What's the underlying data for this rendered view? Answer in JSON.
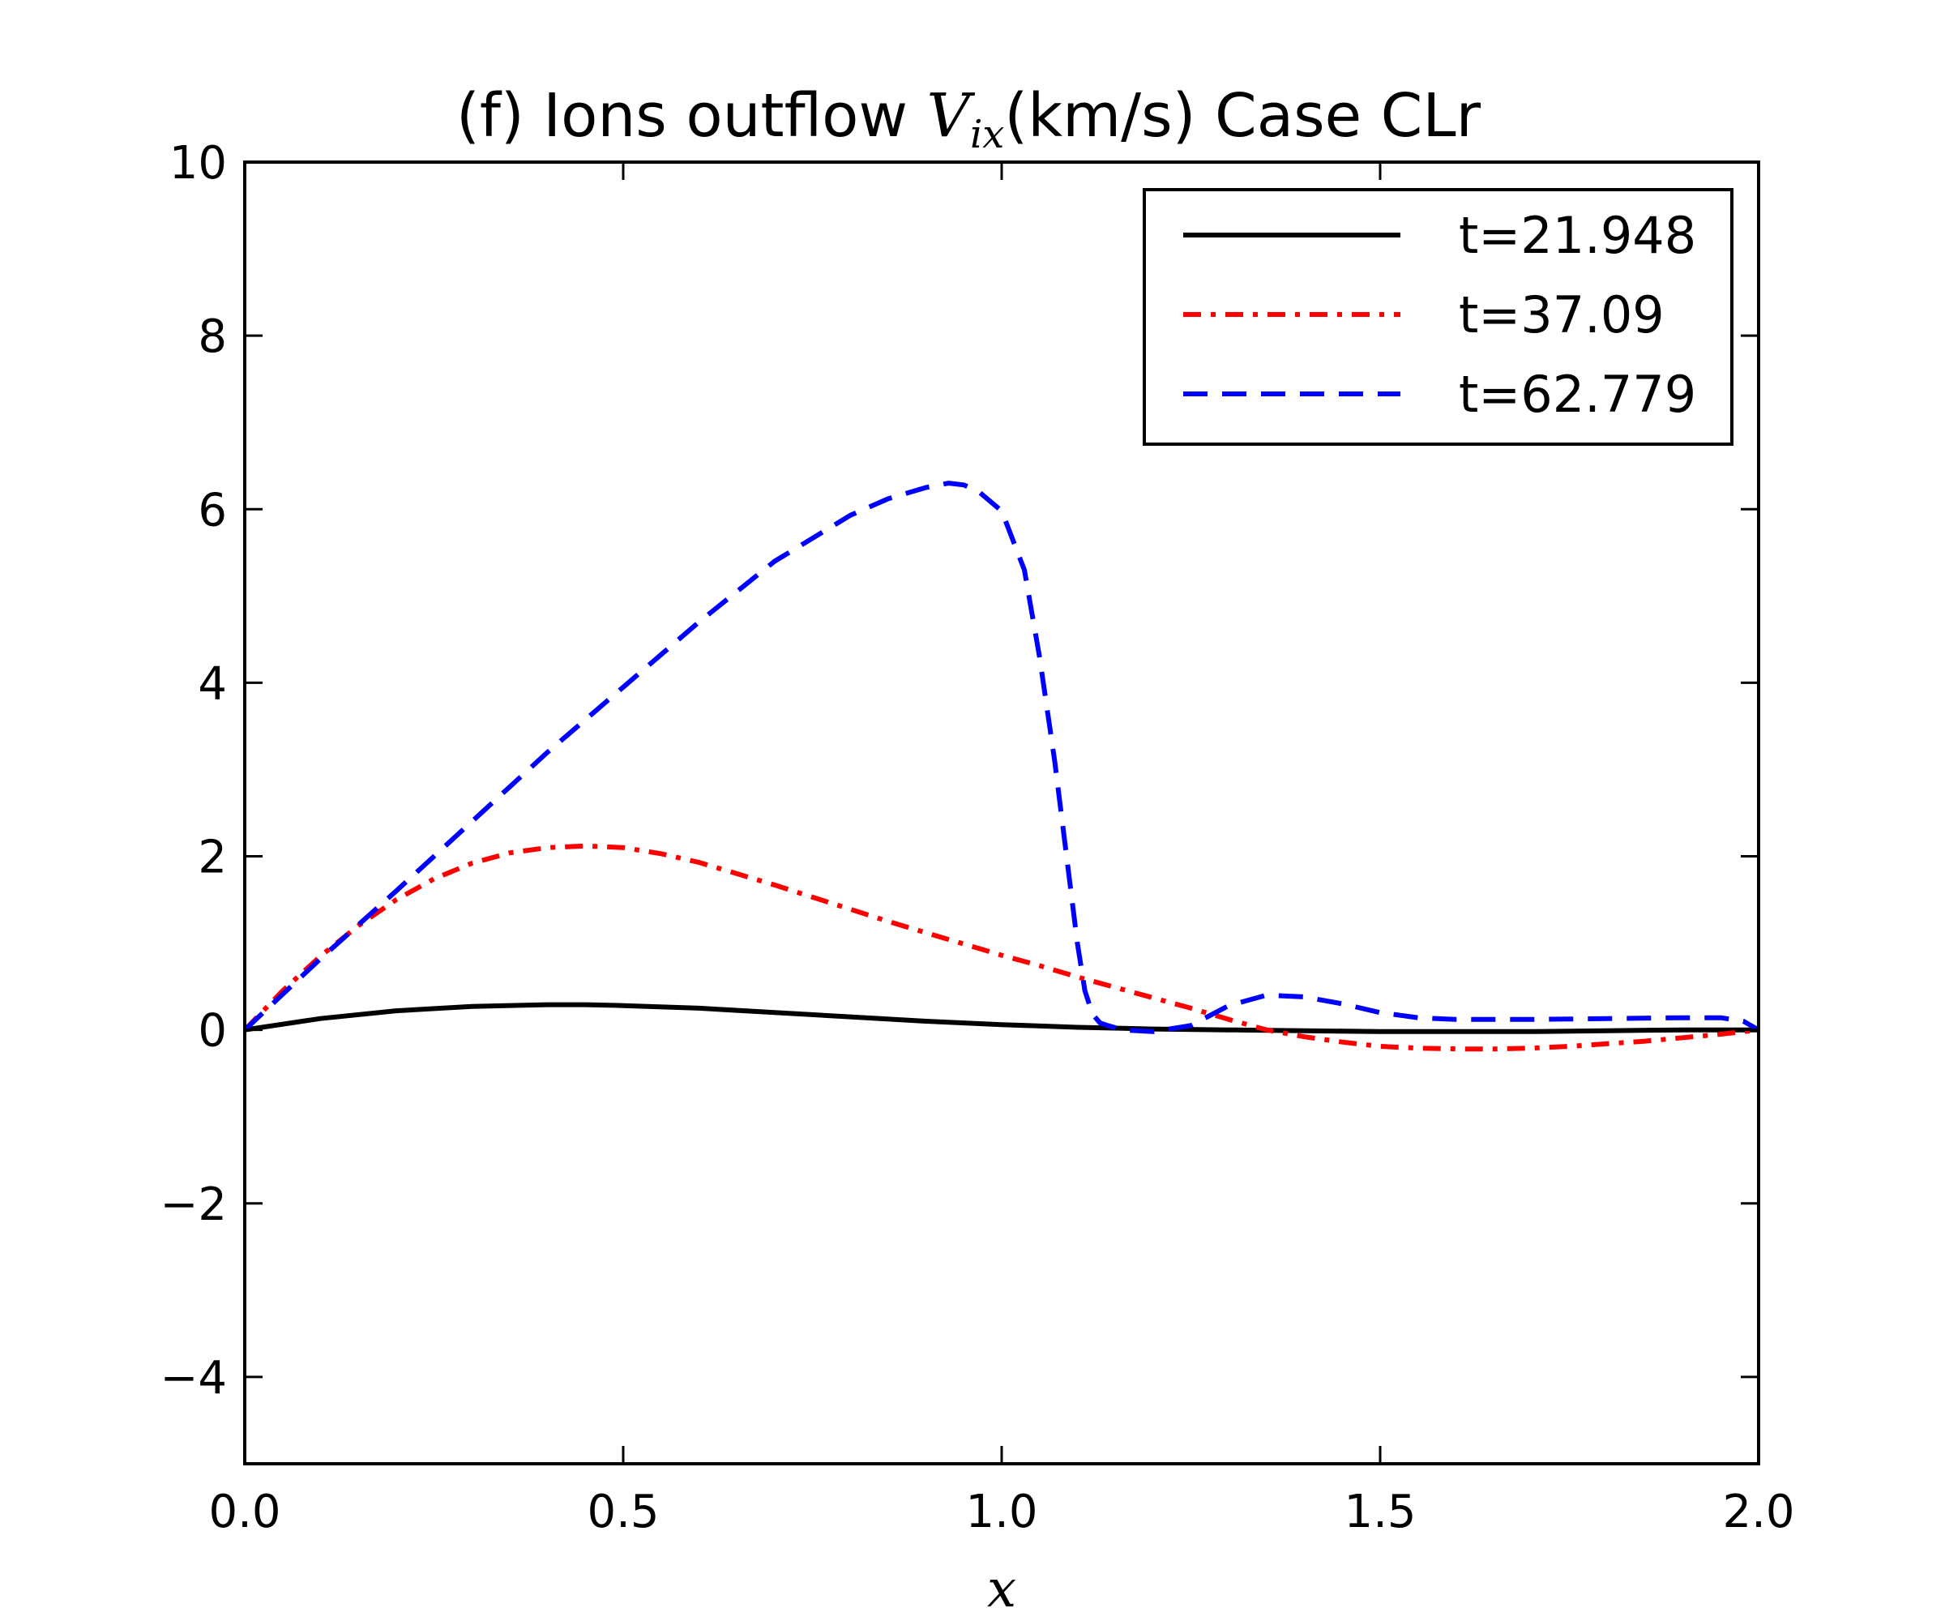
{
  "chart_data": {
    "type": "line",
    "title_prefix": "(f) Ions outflow ",
    "title_math_main": "V",
    "title_math_sub": "ix",
    "title_suffix": "(km/s)  Case CLr",
    "xlabel": "x",
    "ylabel": "",
    "xlim": [
      0.0,
      2.0
    ],
    "ylim": [
      -5,
      10
    ],
    "xticks": [
      0.0,
      0.5,
      1.0,
      1.5,
      2.0
    ],
    "xtick_labels": [
      "0.0",
      "0.5",
      "1.0",
      "1.5",
      "2.0"
    ],
    "yticks": [
      -4,
      -2,
      0,
      2,
      4,
      6,
      8,
      10
    ],
    "ytick_labels": [
      "−4",
      "−2",
      "0",
      "2",
      "4",
      "6",
      "8",
      "10"
    ],
    "grid": false,
    "legend_position": "top-right",
    "series": [
      {
        "name": "t=21.948",
        "color": "#000000",
        "style": "solid",
        "x": [
          0.0,
          0.1,
          0.2,
          0.3,
          0.4,
          0.45,
          0.5,
          0.6,
          0.7,
          0.8,
          0.9,
          1.0,
          1.1,
          1.2,
          1.3,
          1.4,
          1.5,
          1.6,
          1.7,
          1.8,
          1.9,
          2.0
        ],
        "y": [
          0.0,
          0.13,
          0.22,
          0.27,
          0.29,
          0.29,
          0.28,
          0.25,
          0.2,
          0.15,
          0.1,
          0.06,
          0.03,
          0.01,
          0.0,
          -0.01,
          -0.02,
          -0.02,
          -0.02,
          -0.01,
          0.0,
          0.0
        ]
      },
      {
        "name": "t=37.09",
        "color": "#ff0000",
        "style": "dashdot",
        "x": [
          0.0,
          0.05,
          0.1,
          0.15,
          0.2,
          0.25,
          0.3,
          0.35,
          0.4,
          0.45,
          0.5,
          0.55,
          0.6,
          0.65,
          0.7,
          0.75,
          0.8,
          0.85,
          0.9,
          0.95,
          1.0,
          1.05,
          1.1,
          1.15,
          1.2,
          1.25,
          1.3,
          1.35,
          1.4,
          1.45,
          1.5,
          1.55,
          1.6,
          1.65,
          1.7,
          1.75,
          1.8,
          1.85,
          1.9,
          1.95,
          2.0
        ],
        "y": [
          0.0,
          0.45,
          0.85,
          1.2,
          1.5,
          1.74,
          1.92,
          2.04,
          2.1,
          2.12,
          2.1,
          2.03,
          1.93,
          1.8,
          1.67,
          1.53,
          1.39,
          1.25,
          1.12,
          0.99,
          0.86,
          0.74,
          0.61,
          0.49,
          0.37,
          0.25,
          0.12,
          0.0,
          -0.08,
          -0.14,
          -0.19,
          -0.21,
          -0.22,
          -0.22,
          -0.21,
          -0.19,
          -0.16,
          -0.13,
          -0.09,
          -0.05,
          0.0
        ]
      },
      {
        "name": "t=62.779",
        "color": "#0000ff",
        "style": "dashed",
        "x": [
          0.0,
          0.1,
          0.2,
          0.3,
          0.4,
          0.5,
          0.6,
          0.7,
          0.8,
          0.85,
          0.9,
          0.93,
          0.95,
          0.97,
          1.0,
          1.03,
          1.05,
          1.07,
          1.09,
          1.1,
          1.11,
          1.12,
          1.13,
          1.14,
          1.16,
          1.2,
          1.25,
          1.3,
          1.35,
          1.4,
          1.45,
          1.5,
          1.55,
          1.6,
          1.7,
          1.8,
          1.9,
          1.95,
          1.98,
          2.0
        ],
        "y": [
          0.0,
          0.82,
          1.6,
          2.4,
          3.2,
          3.95,
          4.7,
          5.4,
          5.93,
          6.12,
          6.25,
          6.3,
          6.28,
          6.2,
          5.98,
          5.3,
          4.3,
          3.1,
          1.7,
          1.0,
          0.45,
          0.18,
          0.08,
          0.05,
          0.0,
          -0.02,
          0.05,
          0.28,
          0.4,
          0.38,
          0.3,
          0.2,
          0.14,
          0.12,
          0.12,
          0.13,
          0.14,
          0.14,
          0.1,
          0.0
        ]
      }
    ]
  }
}
